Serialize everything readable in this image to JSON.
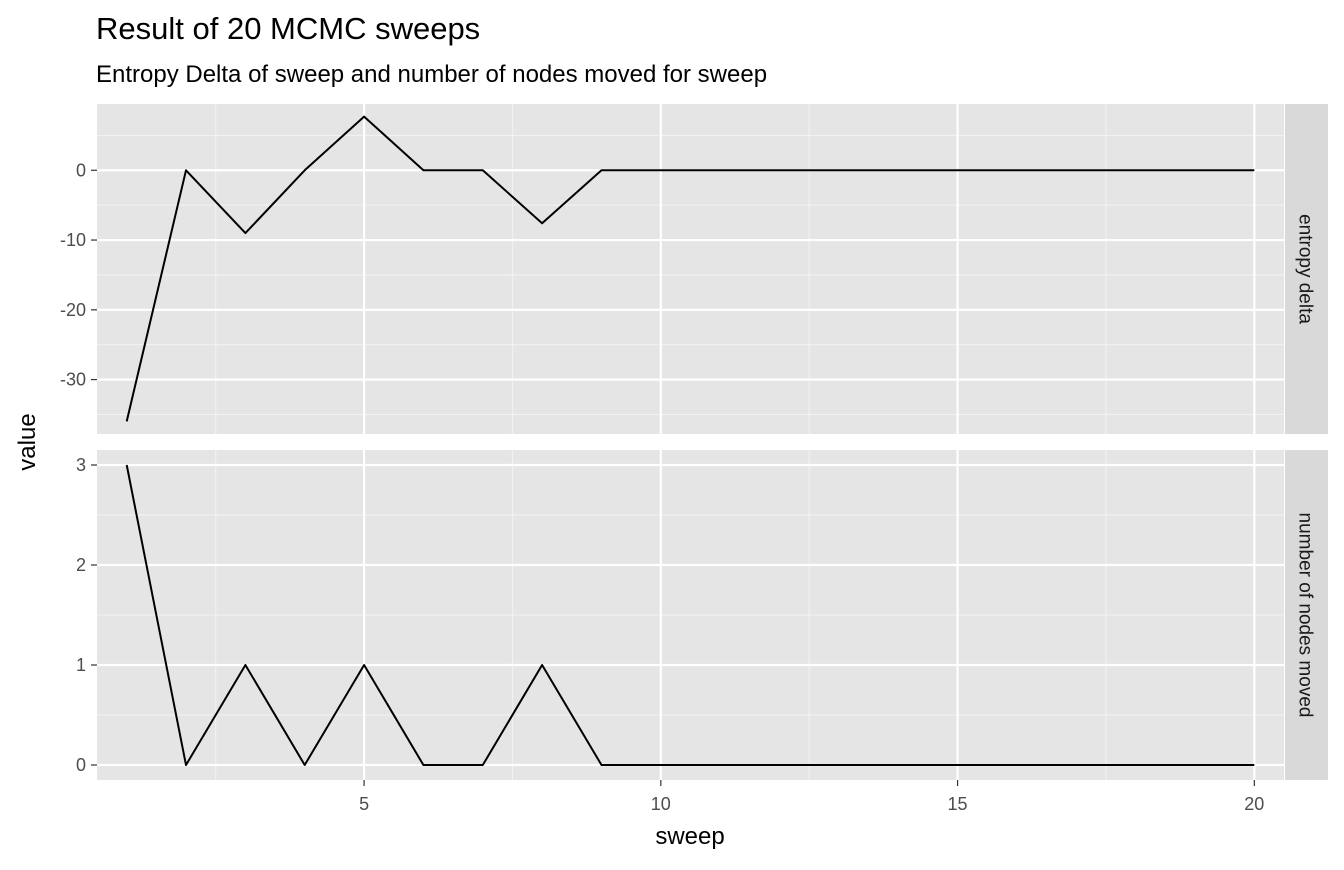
{
  "chart_data": {
    "type": "line",
    "title": "Result of 20 MCMC sweeps",
    "subtitle": "Entropy Delta of sweep and number of nodes moved for sweep",
    "xlabel": "sweep",
    "ylabel": "value",
    "x": [
      1,
      2,
      3,
      4,
      5,
      6,
      7,
      8,
      9,
      10,
      11,
      12,
      13,
      14,
      15,
      16,
      17,
      18,
      19,
      20
    ],
    "xlim": [
      0.5,
      20.5
    ],
    "xticks": [
      5,
      10,
      15,
      20
    ],
    "grid": true,
    "line_color": "#000000",
    "panel_background": "#e5e5e5",
    "strip_background": "#d9d9d9",
    "facets": [
      {
        "label": "entropy delta",
        "values": [
          -36,
          0,
          -9,
          0,
          7.7,
          0,
          0,
          -7.6,
          0,
          0,
          0,
          0,
          0,
          0,
          0,
          0,
          0,
          0,
          0,
          0
        ],
        "ylim": [
          -37.8,
          9.5
        ],
        "yticks": [
          -30,
          -20,
          -10,
          0
        ]
      },
      {
        "label": "number of nodes moved",
        "values": [
          3,
          0,
          1,
          0,
          1,
          0,
          0,
          1,
          0,
          0,
          0,
          0,
          0,
          0,
          0,
          0,
          0,
          0,
          0,
          0
        ],
        "ylim": [
          -0.15,
          3.15
        ],
        "yticks": [
          0,
          1,
          2,
          3
        ]
      }
    ]
  }
}
